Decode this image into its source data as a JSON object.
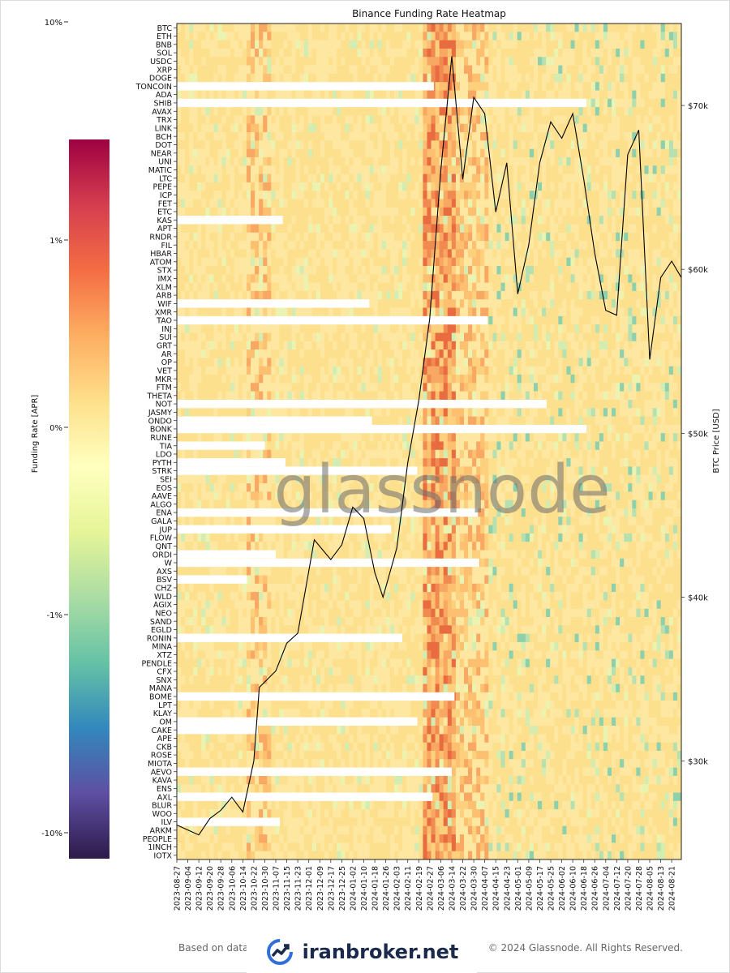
{
  "chart_data": {
    "type": "heatmap",
    "title": "Binance Funding Rate Heatmap",
    "colorbar": {
      "label": "Funding Rate [APR]",
      "ticks": [
        "10%",
        "1%",
        "0%",
        "-1%",
        "-10%"
      ],
      "colormap": [
        "#9e0142",
        "#d53e4f",
        "#f46d43",
        "#fdae61",
        "#fee08b",
        "#ffffbf",
        "#e6f598",
        "#abdda4",
        "#66c2a5",
        "#3288bd",
        "#5e4fa2",
        "#2d1a4a"
      ]
    },
    "y2label": "BTC Price [USD]",
    "y2ticks": [
      "$70k",
      "$60k",
      "$50k",
      "$40k",
      "$30k"
    ],
    "y2lim": [
      24000,
      75000
    ],
    "coins": [
      "BTC",
      "ETH",
      "BNB",
      "SOL",
      "USDC",
      "XRP",
      "DOGE",
      "TONCOIN",
      "ADA",
      "SHIB",
      "AVAX",
      "TRX",
      "LINK",
      "BCH",
      "DOT",
      "NEAR",
      "UNI",
      "MATIC",
      "LTC",
      "PEPE",
      "ICP",
      "FET",
      "ETC",
      "KAS",
      "APT",
      "RNDR",
      "FIL",
      "HBAR",
      "ATOM",
      "STX",
      "IMX",
      "XLM",
      "ARB",
      "WIF",
      "XMR",
      "TAO",
      "INJ",
      "SUI",
      "GRT",
      "AR",
      "OP",
      "VET",
      "MKR",
      "FTM",
      "THETA",
      "NOT",
      "JASMY",
      "ONDO",
      "BONK",
      "RUNE",
      "TIA",
      "LDO",
      "PYTH",
      "STRK",
      "SEI",
      "EOS",
      "AAVE",
      "ALGO",
      "ENA",
      "GALA",
      "JUP",
      "FLOW",
      "QNT",
      "ORDI",
      "W",
      "AXS",
      "BSV",
      "CHZ",
      "WLD",
      "AGIX",
      "NEO",
      "SAND",
      "EGLD",
      "RONIN",
      "MINA",
      "XTZ",
      "PENDLE",
      "CFX",
      "SNX",
      "MANA",
      "BOME",
      "LPT",
      "KLAY",
      "OM",
      "CAKE",
      "APE",
      "CKB",
      "ROSE",
      "MIOTA",
      "AEVO",
      "KAVA",
      "ENS",
      "AXL",
      "BLUR",
      "WOO",
      "ILV",
      "ARKM",
      "PEOPLE",
      "1INCH",
      "IOTX"
    ],
    "dates": [
      "2023-08-27",
      "2023-09-04",
      "2023-09-12",
      "2023-09-20",
      "2023-09-28",
      "2023-10-06",
      "2023-10-14",
      "2023-10-22",
      "2023-10-30",
      "2023-11-07",
      "2023-11-15",
      "2023-11-23",
      "2023-12-01",
      "2023-12-09",
      "2023-12-17",
      "2023-12-25",
      "2024-01-02",
      "2024-01-10",
      "2024-01-18",
      "2024-01-26",
      "2024-02-03",
      "2024-02-11",
      "2024-02-19",
      "2024-02-27",
      "2024-03-06",
      "2024-03-14",
      "2024-03-22",
      "2024-03-30",
      "2024-04-07",
      "2024-04-15",
      "2024-04-23",
      "2024-05-01",
      "2024-05-09",
      "2024-05-17",
      "2024-05-25",
      "2024-06-02",
      "2024-06-10",
      "2024-06-18",
      "2024-06-26",
      "2024-07-04",
      "2024-07-12",
      "2024-07-20",
      "2024-07-28",
      "2024-08-05",
      "2024-08-13",
      "2024-08-21"
    ],
    "not_listed_until": [
      {
        "coin": "TONCOIN",
        "until": "2024-03-01"
      },
      {
        "coin": "SHIB",
        "until": "2024-06-20"
      },
      {
        "coin": "KAS",
        "until": "2023-11-12"
      },
      {
        "coin": "WIF",
        "until": "2024-01-14"
      },
      {
        "coin": "TAO",
        "until": "2024-04-09"
      },
      {
        "coin": "NOT",
        "until": "2024-05-22"
      },
      {
        "coin": "ONDO",
        "until": "2024-01-16"
      },
      {
        "coin": "BONK",
        "until": "2024-06-20"
      },
      {
        "coin": "TIA",
        "until": "2023-10-30"
      },
      {
        "coin": "PYTH",
        "until": "2023-11-14"
      },
      {
        "coin": "STRK",
        "until": "2024-02-18"
      },
      {
        "coin": "ENA",
        "until": "2024-04-02"
      },
      {
        "coin": "JUP",
        "until": "2024-01-30"
      },
      {
        "coin": "ORDI",
        "until": "2023-11-07"
      },
      {
        "coin": "W",
        "until": "2024-04-03"
      },
      {
        "coin": "BSV",
        "until": "2023-10-17"
      },
      {
        "coin": "RONIN",
        "until": "2024-02-07"
      },
      {
        "coin": "BOME",
        "until": "2024-03-16"
      },
      {
        "coin": "OM",
        "until": "2024-02-18"
      },
      {
        "coin": "CAKE",
        "until": "2023-10-25"
      },
      {
        "coin": "AEVO",
        "until": "2024-03-14"
      },
      {
        "coin": "AXL",
        "until": "2024-02-29"
      },
      {
        "coin": "ILV",
        "until": "2023-11-10"
      }
    ],
    "btc_price": {
      "x": [
        "2023-08-27",
        "2023-09-04",
        "2023-09-12",
        "2023-09-20",
        "2023-09-28",
        "2023-10-06",
        "2023-10-14",
        "2023-10-22",
        "2023-10-26",
        "2023-11-07",
        "2023-11-15",
        "2023-11-23",
        "2023-12-05",
        "2023-12-17",
        "2023-12-25",
        "2024-01-02",
        "2024-01-10",
        "2024-01-18",
        "2024-01-24",
        "2024-02-03",
        "2024-02-11",
        "2024-02-19",
        "2024-02-27",
        "2024-03-06",
        "2024-03-14",
        "2024-03-22",
        "2024-03-30",
        "2024-04-07",
        "2024-04-15",
        "2024-04-23",
        "2024-05-01",
        "2024-05-09",
        "2024-05-17",
        "2024-05-25",
        "2024-06-02",
        "2024-06-10",
        "2024-06-18",
        "2024-06-26",
        "2024-07-04",
        "2024-07-12",
        "2024-07-20",
        "2024-07-28",
        "2024-08-05",
        "2024-08-13",
        "2024-08-21",
        "2024-08-28"
      ],
      "y": [
        26100,
        25800,
        25500,
        26500,
        27000,
        27800,
        26900,
        30000,
        34500,
        35500,
        37200,
        37800,
        43500,
        42300,
        43200,
        45500,
        44800,
        41500,
        40000,
        43000,
        48200,
        52000,
        57000,
        66000,
        73000,
        65500,
        70500,
        69500,
        63500,
        66500,
        58500,
        61500,
        66500,
        69000,
        68000,
        69500,
        65500,
        61000,
        57500,
        57200,
        67000,
        68500,
        54500,
        59500,
        60500,
        59500
      ]
    }
  },
  "footer": {
    "left": "Based on data",
    "right": "© 2024 Glassnode. All Rights Reserved."
  },
  "watermark": "glassnode",
  "brand": {
    "name": "iranbroker.net",
    "icon": "chart-trend-logo-icon"
  }
}
